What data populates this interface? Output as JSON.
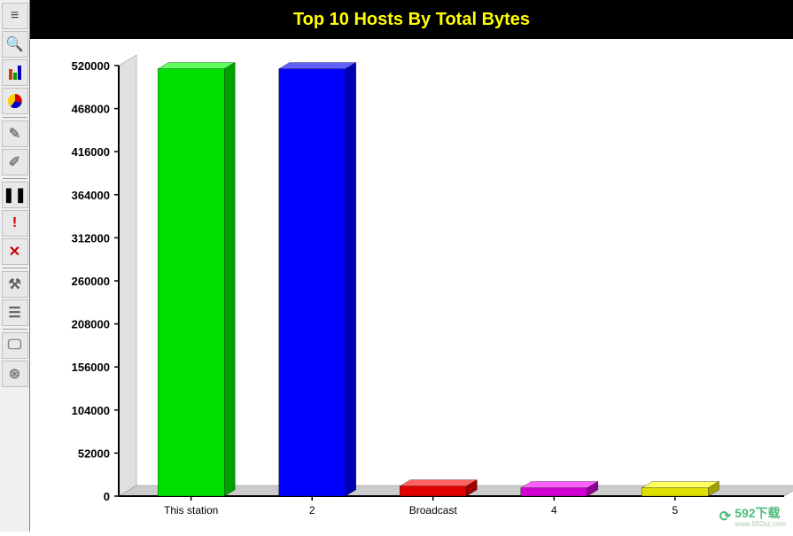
{
  "toolbar": {
    "buttons": [
      {
        "name": "text-view-button",
        "glyph": "≡",
        "color": "#404040"
      },
      {
        "name": "search-button",
        "glyph": "🔍",
        "color": "#0060c0"
      },
      {
        "name": "bar-chart-button",
        "glyph": "▮",
        "color": "#c04000",
        "multicolor": true
      },
      {
        "name": "pie-chart-button",
        "glyph": "◐",
        "color": "#e00000",
        "pie": true
      },
      {
        "name": "pen-tool-button",
        "glyph": "✎",
        "color": "#808080"
      },
      {
        "name": "edit-tool-button",
        "glyph": "✐",
        "color": "#808080"
      },
      {
        "name": "pause-button",
        "glyph": "❚❚",
        "color": "#000000"
      },
      {
        "name": "alert-button",
        "glyph": "!",
        "color": "#d00000"
      },
      {
        "name": "delete-button",
        "glyph": "✕",
        "color": "#d00000"
      },
      {
        "name": "tools-button",
        "glyph": "⚒",
        "color": "#606060"
      },
      {
        "name": "properties-button",
        "glyph": "☰",
        "color": "#606060"
      },
      {
        "name": "monitor-button",
        "glyph": "🖵",
        "color": "#808080"
      },
      {
        "name": "network-button",
        "glyph": "⊛",
        "color": "#808080"
      }
    ],
    "separators_after": [
      3,
      5,
      8,
      10
    ]
  },
  "chart": {
    "type": "bar",
    "title": "Top 10 Hosts By Total Bytes",
    "title_color": "#ffff00",
    "title_bg": "#000000",
    "title_fontsize": 20,
    "background_color": "#ffffff",
    "plot_bg": "#ffffff",
    "wall_color": "#e0e0e0",
    "floor_color": "#cccccc",
    "axis_color": "#000000",
    "grid_color": "#c0c0c0",
    "ylim": [
      0,
      520000
    ],
    "ytick_step": 52000,
    "yticks": [
      0,
      52000,
      104000,
      156000,
      208000,
      260000,
      312000,
      364000,
      416000,
      468000,
      520000
    ],
    "categories": [
      "This station",
      "2",
      "Broadcast",
      "4",
      "5"
    ],
    "values": [
      516000,
      516000,
      12000,
      10000,
      10000
    ],
    "bar_colors": [
      "#00e000",
      "#0000ff",
      "#e00000",
      "#d000d0",
      "#e0e000"
    ],
    "bar_side_colors": [
      "#00a000",
      "#0000b0",
      "#a00000",
      "#900090",
      "#a0a000"
    ],
    "bar_top_colors": [
      "#60ff60",
      "#6060ff",
      "#ff6060",
      "#ff60ff",
      "#ffff60"
    ],
    "bar_width": 0.55,
    "depth_x": 20,
    "depth_y": 12,
    "label_fontsize": 13,
    "xlabel_fontsize": 12
  },
  "watermark": {
    "logo_glyph": "⟳",
    "text": "592下载",
    "subtext": "www.592xz.com",
    "color": "#3cb371"
  }
}
